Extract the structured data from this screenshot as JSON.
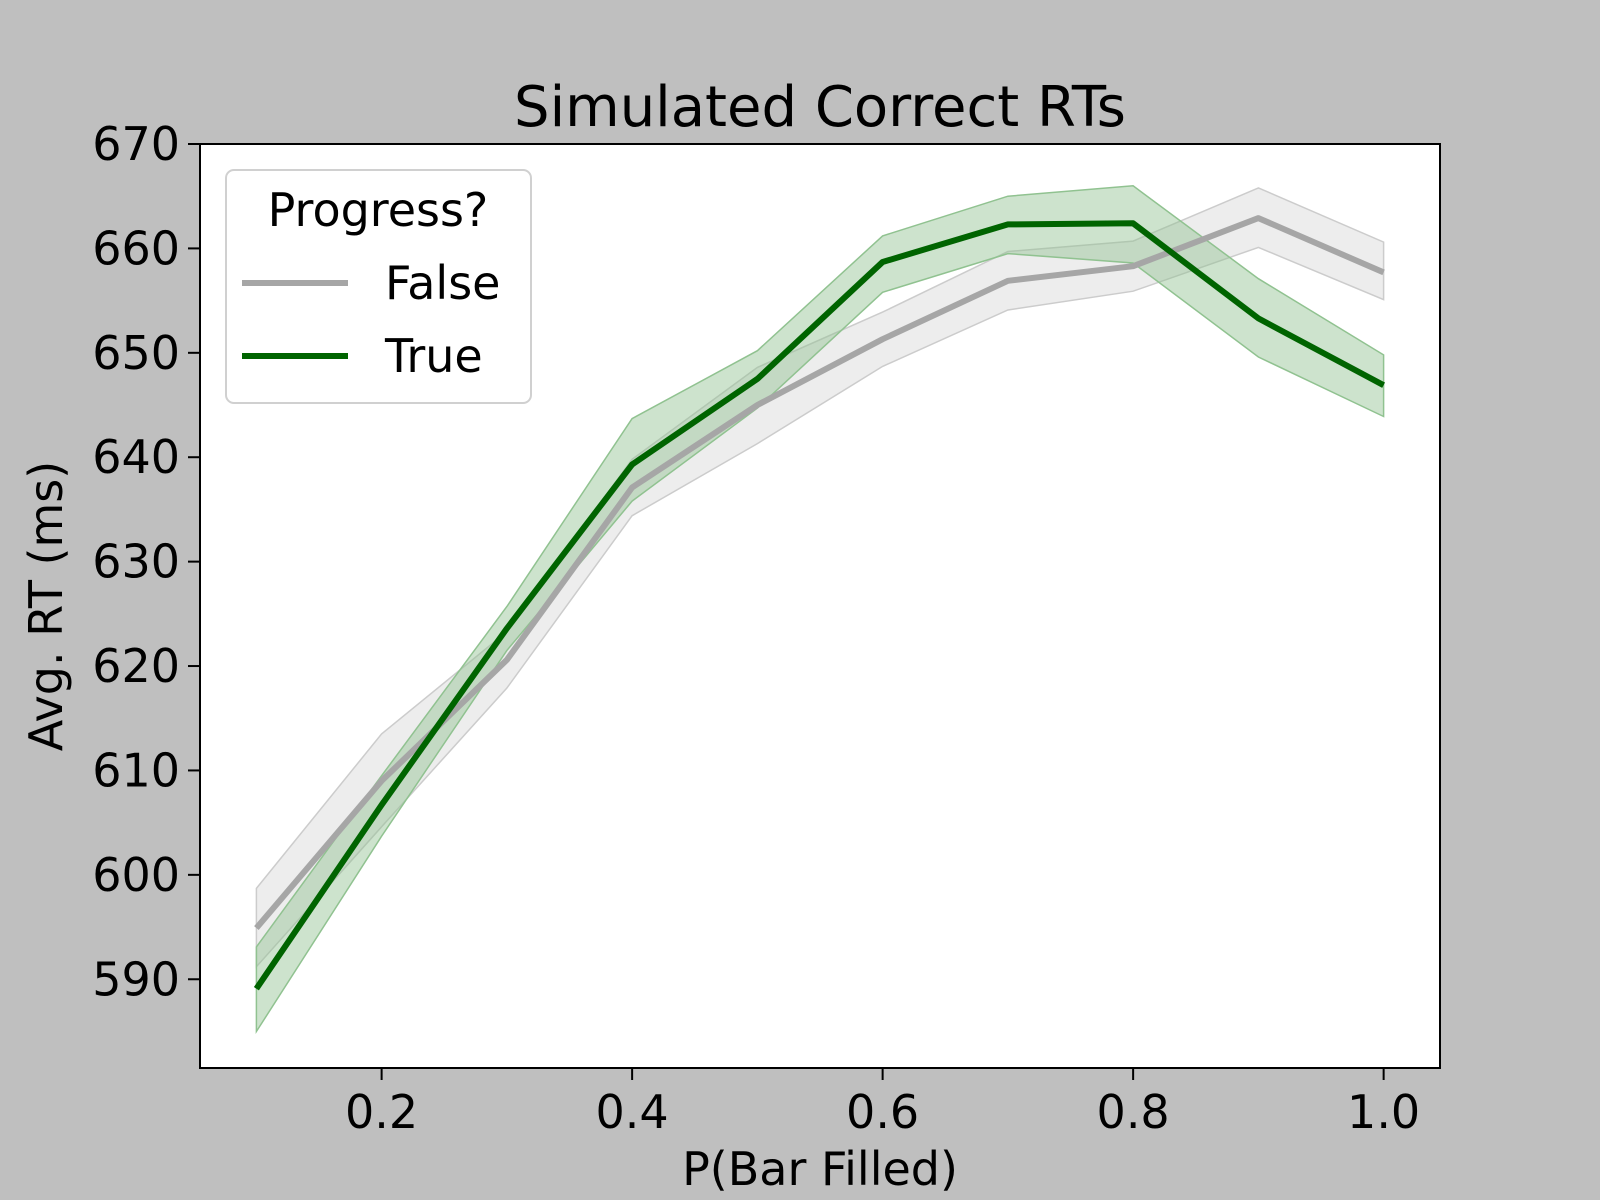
{
  "chart_data": {
    "type": "line",
    "title": "Simulated Correct RTs",
    "xlabel": "P(Bar Filled)",
    "ylabel": "Avg. RT (ms)",
    "xlim": [
      0.055,
      1.045
    ],
    "ylim": [
      581.5,
      670
    ],
    "xticks": [
      0.2,
      0.4,
      0.6,
      0.8,
      1.0
    ],
    "xtick_labels": [
      "0.2",
      "0.4",
      "0.6",
      "0.8",
      "1.0"
    ],
    "yticks": [
      590,
      600,
      610,
      620,
      630,
      640,
      650,
      660,
      670
    ],
    "ytick_labels": [
      "590",
      "600",
      "610",
      "620",
      "630",
      "640",
      "650",
      "660",
      "670"
    ],
    "grid": false,
    "legend": {
      "title": "Progress?",
      "position": "top-left"
    },
    "x": [
      0.1,
      0.2,
      0.3,
      0.4,
      0.5,
      0.6,
      0.7,
      0.8,
      0.9,
      1.0
    ],
    "series": [
      {
        "name": "False",
        "color": "#a6a6a6",
        "band_color": "#cccccc",
        "values": [
          594.9,
          609.0,
          620.6,
          637.1,
          645.0,
          651.3,
          656.9,
          658.3,
          662.9,
          657.7
        ],
        "lower": [
          591.2,
          604.6,
          617.9,
          634.4,
          641.3,
          648.7,
          654.1,
          655.9,
          660.1,
          655.1
        ],
        "upper": [
          598.7,
          613.5,
          623.3,
          639.8,
          648.6,
          653.9,
          659.7,
          660.7,
          665.8,
          660.6
        ]
      },
      {
        "name": "True",
        "color": "#006400",
        "band_color": "#90c290",
        "values": [
          589.1,
          606.7,
          623.6,
          639.3,
          647.5,
          658.7,
          662.3,
          662.4,
          653.3,
          646.9
        ],
        "lower": [
          585.0,
          603.7,
          621.5,
          635.8,
          644.7,
          655.8,
          659.5,
          658.6,
          649.6,
          643.9
        ],
        "upper": [
          593.1,
          609.5,
          625.7,
          643.7,
          650.2,
          661.2,
          665.0,
          666.0,
          657.1,
          649.8
        ]
      }
    ]
  }
}
